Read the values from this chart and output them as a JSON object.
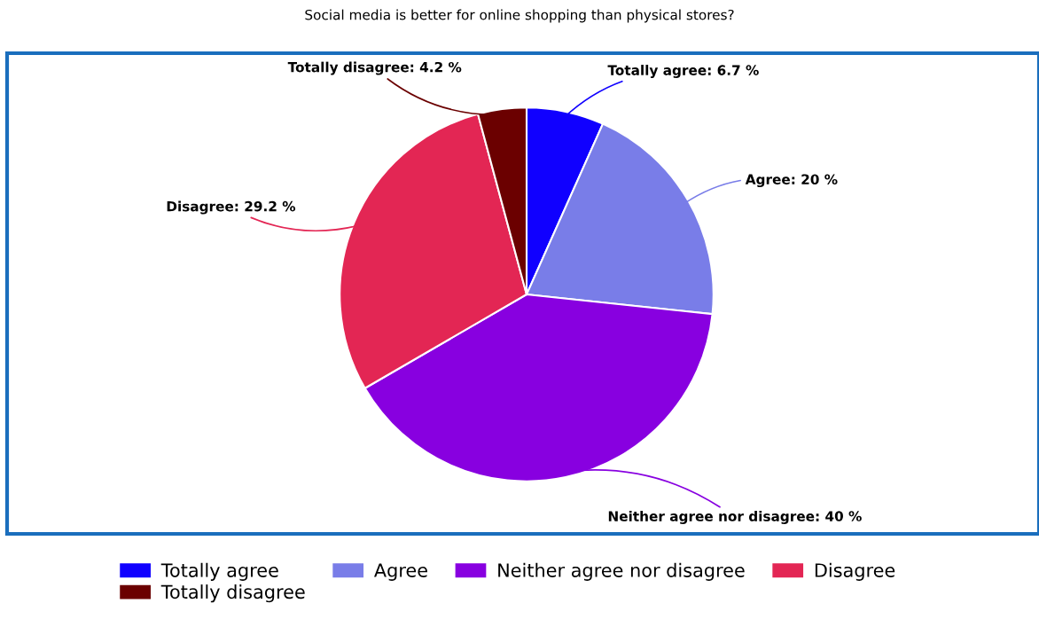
{
  "chart_data": {
    "type": "pie",
    "title": "Social media is better for online shopping than physical stores?",
    "categories": [
      "Totally agree",
      "Agree",
      "Neither agree nor disagree",
      "Disagree",
      "Totally disagree"
    ],
    "values": [
      6.7,
      20,
      40,
      29.2,
      4.2
    ],
    "colors": [
      "#1000ff",
      "#797de8",
      "#8800e0",
      "#e32654",
      "#6b0000"
    ],
    "value_labels": [
      "Totally agree: 6.7 %",
      "Agree: 20 %",
      "Neither agree nor disagree: 40 %",
      "Disagree: 29.2 %",
      "Totally disagree: 4.2 %"
    ],
    "legend": "bottom"
  }
}
